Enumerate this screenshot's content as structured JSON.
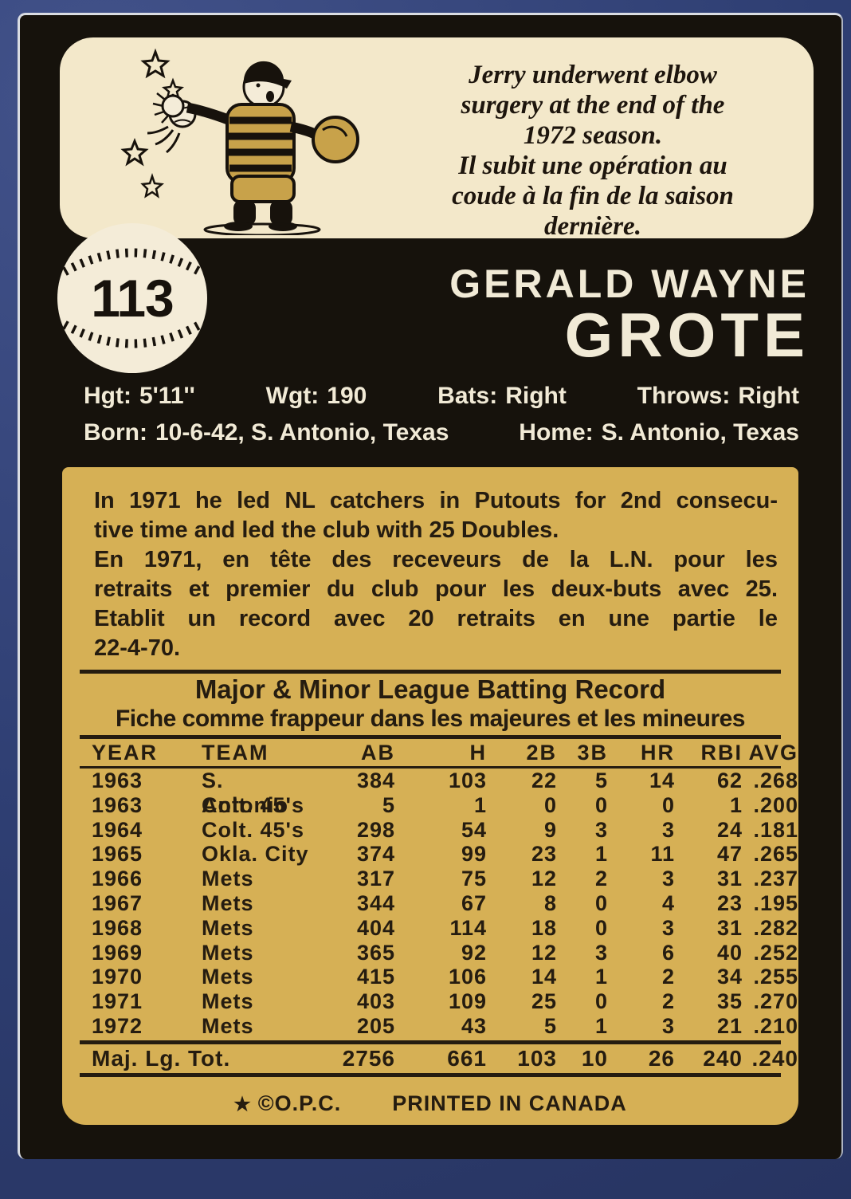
{
  "card": {
    "number": "113",
    "caption": {
      "en_lines": [
        "Jerry underwent elbow",
        "surgery at the end of the",
        "1972 season."
      ],
      "fr_lines": [
        "Il subit une opération au",
        "coude à la fin de la saison",
        "dernière."
      ]
    },
    "player": {
      "first_line": "GERALD WAYNE",
      "last_line": "GROTE"
    },
    "vitals": {
      "row1": [
        {
          "label": "Hgt:",
          "value": "5'11''"
        },
        {
          "label": "Wgt:",
          "value": "190"
        },
        {
          "label": "Bats:",
          "value": "Right"
        },
        {
          "label": "Throws:",
          "value": "Right"
        }
      ],
      "row2": [
        {
          "label": "Born:",
          "value": "10-6-42, S. Antonio, Texas"
        },
        {
          "label": "Home:",
          "value": "S. Antonio, Texas"
        }
      ]
    },
    "bio_lines": [
      "In 1971 he led NL catchers in Putouts for 2nd consecu-",
      "tive time and led the club with 25 Doubles.",
      "En 1971, en tête des receveurs de la L.N. pour les",
      "retraits et premier du club pour les deux-buts avec 25.",
      "Etablit un record avec 20 retraits en une partie le",
      "22-4-70."
    ],
    "batting_record": {
      "title_en": "Major & Minor League Batting Record",
      "title_fr": "Fiche comme frappeur dans les majeures et les mineures",
      "headers": [
        "YEAR",
        "TEAM",
        "AB",
        "H",
        "2B",
        "3B",
        "HR",
        "RBI",
        "AVG"
      ],
      "rows": [
        [
          "1963",
          "S. Antonio",
          "384",
          "103",
          "22",
          "5",
          "14",
          "62",
          ".268"
        ],
        [
          "1963",
          "Colt. 45's",
          "5",
          "1",
          "0",
          "0",
          "0",
          "1",
          ".200"
        ],
        [
          "1964",
          "Colt. 45's",
          "298",
          "54",
          "9",
          "3",
          "3",
          "24",
          ".181"
        ],
        [
          "1965",
          "Okla. City",
          "374",
          "99",
          "23",
          "1",
          "11",
          "47",
          ".265"
        ],
        [
          "1966",
          "Mets",
          "317",
          "75",
          "12",
          "2",
          "3",
          "31",
          ".237"
        ],
        [
          "1967",
          "Mets",
          "344",
          "67",
          "8",
          "0",
          "4",
          "23",
          ".195"
        ],
        [
          "1968",
          "Mets",
          "404",
          "114",
          "18",
          "0",
          "3",
          "31",
          ".282"
        ],
        [
          "1969",
          "Mets",
          "365",
          "92",
          "12",
          "3",
          "6",
          "40",
          ".252"
        ],
        [
          "1970",
          "Mets",
          "415",
          "106",
          "14",
          "1",
          "2",
          "34",
          ".255"
        ],
        [
          "1971",
          "Mets",
          "403",
          "109",
          "25",
          "0",
          "2",
          "35",
          ".270"
        ],
        [
          "1972",
          "Mets",
          "205",
          "43",
          "5",
          "1",
          "3",
          "21",
          ".210"
        ]
      ],
      "total": {
        "label": "Maj. Lg. Tot.",
        "values": [
          "2756",
          "661",
          "103",
          "10",
          "26",
          "240",
          ".240"
        ]
      }
    },
    "footer": {
      "star": "★",
      "copyright": "©O.P.C.",
      "printed": "PRINTED IN CANADA"
    },
    "colors": {
      "background_blue": "#2e3e72",
      "card_black": "#16120c",
      "panel_cream": "#f3e8ca",
      "panel_gold": "#d6b055",
      "ink": "#251c10",
      "text_light": "#f1ead6"
    }
  }
}
